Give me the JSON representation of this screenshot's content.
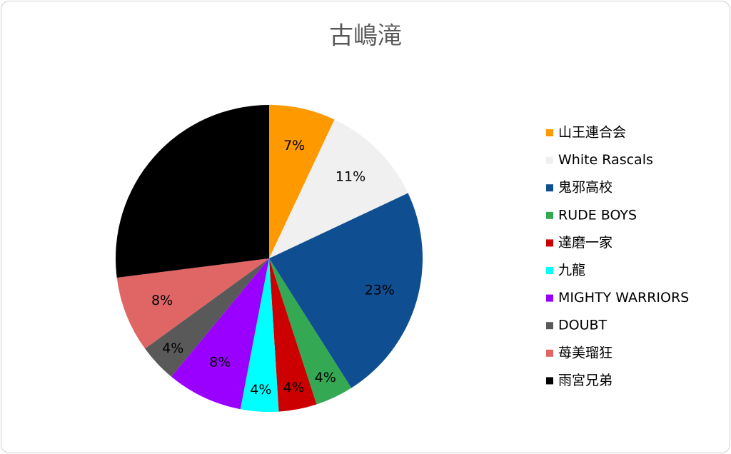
{
  "chart_data": {
    "type": "pie",
    "title": "古嶋滝",
    "categories": [
      "山王連合会",
      "White Rascals",
      "鬼邪高校",
      "RUDE BOYS",
      "達磨一家",
      "九龍",
      "MIGHTY WARRIORS",
      "DOUBT",
      "苺美瑠狂",
      "雨宮兄弟"
    ],
    "values": [
      7,
      11,
      23,
      4,
      4,
      4,
      8,
      4,
      8,
      27
    ],
    "value_labels": [
      "7%",
      "11%",
      "23%",
      "4%",
      "4%",
      "4%",
      "8%",
      "4%",
      "8%",
      null
    ],
    "colors": [
      "#ff9900",
      "#f0f0f0",
      "#0f4f91",
      "#34a853",
      "#cc0000",
      "#00ffff",
      "#9900ff",
      "#595959",
      "#e06666",
      "#000000"
    ],
    "legend": "right"
  }
}
